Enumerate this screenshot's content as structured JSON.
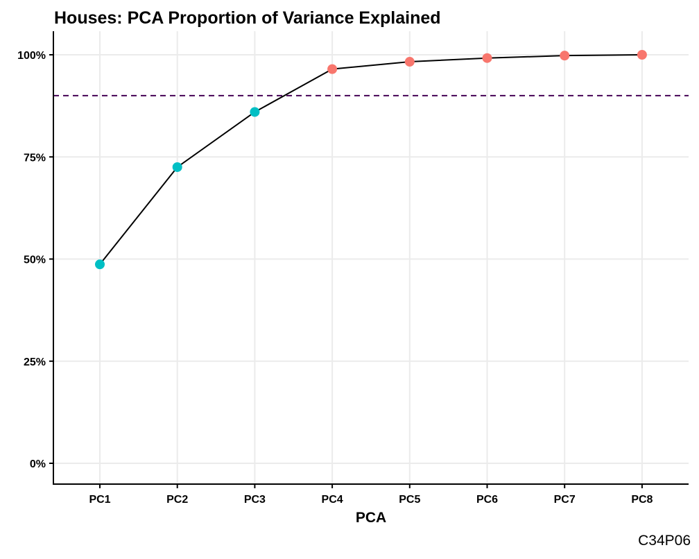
{
  "caption": "C34P06",
  "chart_data": {
    "type": "line",
    "title": "Houses: PCA Proportion of Variance Explained",
    "xlabel": "PCA",
    "ylabel": "",
    "categories": [
      "PC1",
      "PC2",
      "PC3",
      "PC4",
      "PC5",
      "PC6",
      "PC7",
      "PC8"
    ],
    "values": [
      0.487,
      0.725,
      0.86,
      0.965,
      0.983,
      0.992,
      0.998,
      1.0
    ],
    "point_colors": [
      "#00BFC4",
      "#00BFC4",
      "#00BFC4",
      "#F8766D",
      "#F8766D",
      "#F8766D",
      "#F8766D",
      "#F8766D"
    ],
    "ylim": [
      0,
      1
    ],
    "yticks": [
      0,
      0.25,
      0.5,
      0.75,
      1.0
    ],
    "ytick_labels": [
      "0%",
      "25%",
      "50%",
      "75%",
      "100%"
    ],
    "reference_line": {
      "y": 0.9,
      "style": "dashed",
      "color": "#440154"
    },
    "line_color": "#000000",
    "grid": true,
    "legend": "none"
  }
}
